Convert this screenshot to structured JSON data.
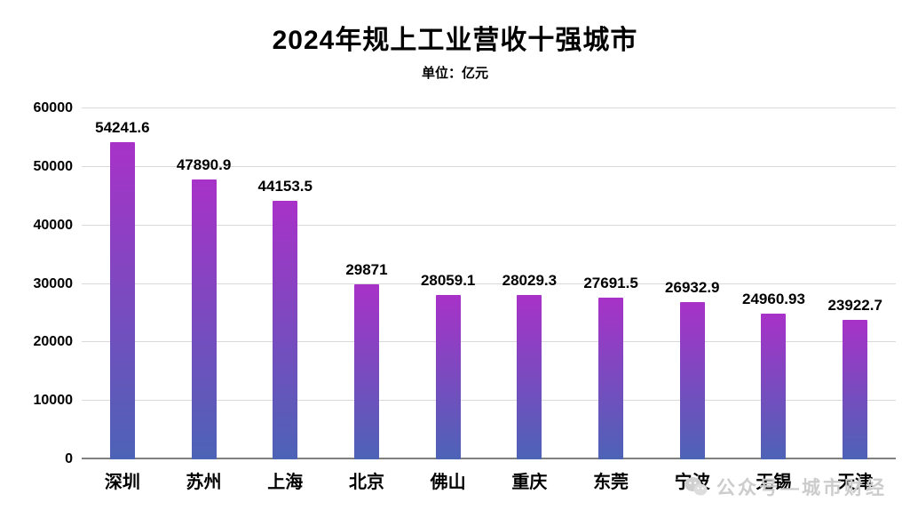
{
  "chart_data": {
    "type": "bar",
    "title": "2024年规上工业营收十强城市",
    "unit_label": "单位：亿元",
    "categories": [
      "深圳",
      "苏州",
      "上海",
      "北京",
      "佛山",
      "重庆",
      "东莞",
      "宁波",
      "无锡",
      "天津"
    ],
    "values": [
      54241.6,
      47890.9,
      44153.5,
      29871,
      28059.1,
      28029.3,
      27691.5,
      26932.9,
      24960.93,
      23922.7
    ],
    "value_labels": [
      "54241.6",
      "47890.9",
      "44153.5",
      "29871",
      "28059.1",
      "28029.3",
      "27691.5",
      "26932.9",
      "24960.93",
      "23922.7"
    ],
    "ylim": [
      0,
      60000
    ],
    "yticks": [
      0,
      10000,
      20000,
      30000,
      40000,
      50000,
      60000
    ],
    "grid": true,
    "legend": false,
    "bar_gradient_top": "#A832C8",
    "bar_gradient_bottom": "#4C63B6"
  },
  "watermark": {
    "text": "公众号—城市财经"
  }
}
